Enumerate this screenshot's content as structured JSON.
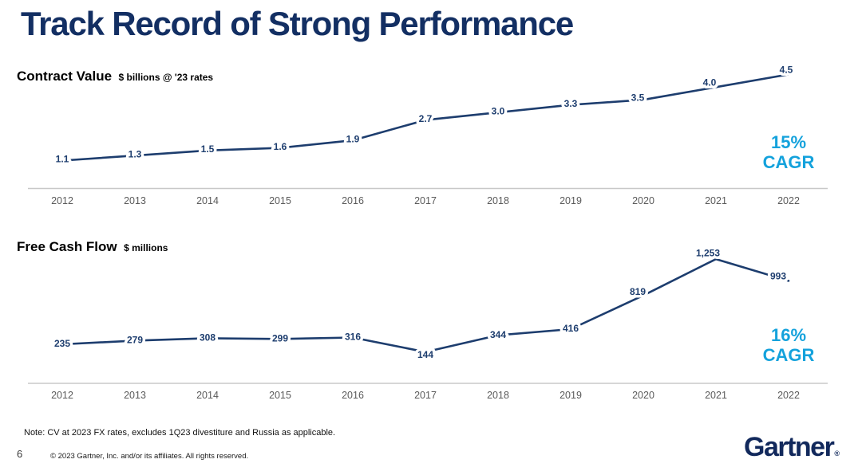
{
  "slide": {
    "title": "Track Record of Strong Performance",
    "note": "Note: CV at 2023 FX rates, excludes 1Q23 divestiture and Russia as applicable.",
    "page_number": "6",
    "copyright": "© 2023 Gartner, Inc. and/or its affiliates. All rights reserved.",
    "logo_text": "Gartner",
    "logo_reg_mark": "®"
  },
  "colors": {
    "title_navy": "#132f63",
    "chart_navy": "#1d3d6e",
    "accent_blue": "#14a2dc",
    "axis_gray": "#c8c8c8",
    "year_gray": "#5a5a5a"
  },
  "chart_data": [
    {
      "type": "line",
      "title": "Contract Value",
      "unit_label": "$ billions @ '23 rates",
      "categories": [
        "2012",
        "2013",
        "2014",
        "2015",
        "2016",
        "2017",
        "2018",
        "2019",
        "2020",
        "2021",
        "2022"
      ],
      "values": [
        1.1,
        1.3,
        1.5,
        1.6,
        1.9,
        2.7,
        3.0,
        3.3,
        3.5,
        4.0,
        4.5
      ],
      "labels": [
        "1.1",
        "1.3",
        "1.5",
        "1.6",
        "1.9",
        "2.7",
        "3.0",
        "3.3",
        "3.5",
        "4.0",
        "4.5"
      ],
      "cagr_value": "15%",
      "cagr_label": "CAGR",
      "xlabel": "",
      "ylabel": "",
      "ylim": [
        0,
        4.8
      ],
      "grid": false,
      "legend": "none",
      "data_labels": true
    },
    {
      "type": "line",
      "title": "Free Cash Flow",
      "unit_label": "$ millions",
      "categories": [
        "2012",
        "2013",
        "2014",
        "2015",
        "2016",
        "2017",
        "2018",
        "2019",
        "2020",
        "2021",
        "2022"
      ],
      "values": [
        235,
        279,
        308,
        299,
        316,
        144,
        344,
        416,
        819,
        1253,
        993
      ],
      "labels": [
        "235",
        "279",
        "308",
        "299",
        "316",
        "144",
        "344",
        "416",
        "819",
        "1,253",
        "993"
      ],
      "cagr_value": "16%",
      "cagr_label": "CAGR",
      "xlabel": "",
      "ylabel": "",
      "ylim": [
        -231,
        1460
      ],
      "grid": false,
      "legend": "none",
      "data_labels": true
    }
  ]
}
